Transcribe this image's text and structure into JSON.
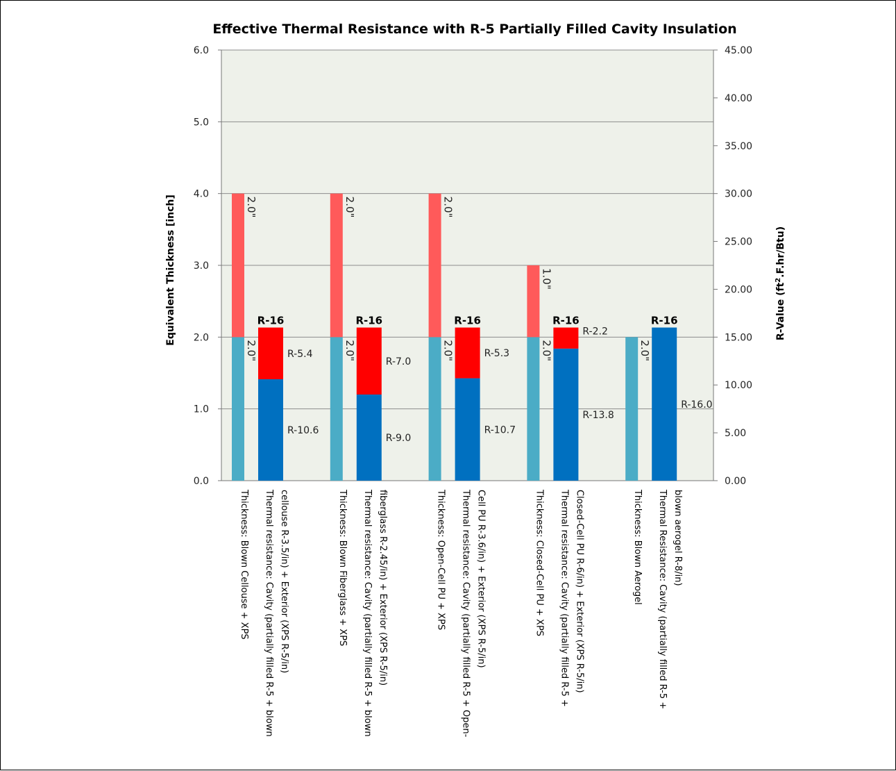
{
  "chart_data": {
    "type": "bar",
    "title": "Effective Thermal Resistance with R-5 Partially Filled Cavity Insulation",
    "ylabel_left": "Equivalent Thickness [inch]",
    "ylabel_right_parts": [
      "R-Value (ft",
      "2",
      ".F.hr/Btu)"
    ],
    "ylim_left": [
      0,
      6
    ],
    "ylim_right": [
      0,
      45
    ],
    "yticks_left": [
      "0.0",
      "1.0",
      "2.0",
      "3.0",
      "4.0",
      "5.0",
      "6.0"
    ],
    "yticks_right": [
      "0.00",
      "5.00",
      "10.00",
      "15.00",
      "20.00",
      "25.00",
      "30.00",
      "35.00",
      "40.00",
      "45.00"
    ],
    "grid": true,
    "colors": {
      "plot_bg": "#eef1ea",
      "thickness_base": "#4bacc6",
      "thickness_top": "#ff5a5a",
      "resistance_base": "#0070c0",
      "resistance_top": "#ff0000",
      "gridline": "#8c8c8c"
    },
    "groups": [
      {
        "thickness": {
          "axis": "left",
          "segments": [
            {
              "value": 2.0,
              "label": "2.0\""
            },
            {
              "value": 2.0,
              "label": "2.0\""
            }
          ],
          "category": [
            "Thickness: Blown Cellouse + XPS"
          ]
        },
        "resistance": {
          "axis": "right",
          "segments": [
            {
              "value": 10.6,
              "label": "R-10.6"
            },
            {
              "value": 5.4,
              "label": "R-5.4"
            }
          ],
          "total_label": "R-16",
          "category": [
            "Thermal resistance: Cavity (partially filled R-5 + blown",
            "cellouse R-3.5/in) + Exterior (XPS R-5/in)"
          ]
        }
      },
      {
        "thickness": {
          "axis": "left",
          "segments": [
            {
              "value": 2.0,
              "label": "2.0\""
            },
            {
              "value": 2.0,
              "label": "2.0\""
            }
          ],
          "category": [
            "Thickness: Blown Fiberglass + XPS"
          ]
        },
        "resistance": {
          "axis": "right",
          "segments": [
            {
              "value": 9.0,
              "label": "R-9.0"
            },
            {
              "value": 7.0,
              "label": "R-7.0"
            }
          ],
          "total_label": "R-16",
          "category": [
            "Thermal resistance: Cavity (partially filled R-5 + blown",
            "fiberglass R-2.45/in) + Exterior (XPS R-5/in)"
          ]
        }
      },
      {
        "thickness": {
          "axis": "left",
          "segments": [
            {
              "value": 2.0,
              "label": "2.0\""
            },
            {
              "value": 2.0,
              "label": "2.0\""
            }
          ],
          "category": [
            "Thickness: Open-Cell PU + XPS"
          ]
        },
        "resistance": {
          "axis": "right",
          "segments": [
            {
              "value": 10.7,
              "label": "R-10.7"
            },
            {
              "value": 5.3,
              "label": "R-5.3"
            }
          ],
          "total_label": "R-16",
          "category": [
            "Thermal resistance: Cavity (partially filled R-5 + Open-",
            "Cell PU R-3.6/in) + Exterior (XPS R-5/in)"
          ]
        }
      },
      {
        "thickness": {
          "axis": "left",
          "segments": [
            {
              "value": 2.0,
              "label": "2.0\""
            },
            {
              "value": 1.0,
              "label": "1.0\""
            }
          ],
          "category": [
            "Thickness: Closed-Cell PU + XPS"
          ]
        },
        "resistance": {
          "axis": "right",
          "segments": [
            {
              "value": 13.8,
              "label": "R-13.8"
            },
            {
              "value": 2.2,
              "label": "R-2.2"
            }
          ],
          "total_label": "R-16",
          "category": [
            "Thermal resistance: Cavity (partially filled R-5 +",
            "Closed-Cell PU R-6/in) + Exterior (XPS R-5/in)"
          ]
        }
      },
      {
        "thickness": {
          "axis": "left",
          "segments": [
            {
              "value": 2.0,
              "label": "2.0\""
            }
          ],
          "category": [
            "Thickness: Blown Aerogel"
          ]
        },
        "resistance": {
          "axis": "right",
          "segments": [
            {
              "value": 16.0,
              "label": "R-16.0"
            }
          ],
          "total_label": "R-16",
          "category": [
            "Thermal Resistance: Cavity (partially filled R-5 +",
            "blown aerogel R-8/in)"
          ]
        }
      }
    ]
  }
}
